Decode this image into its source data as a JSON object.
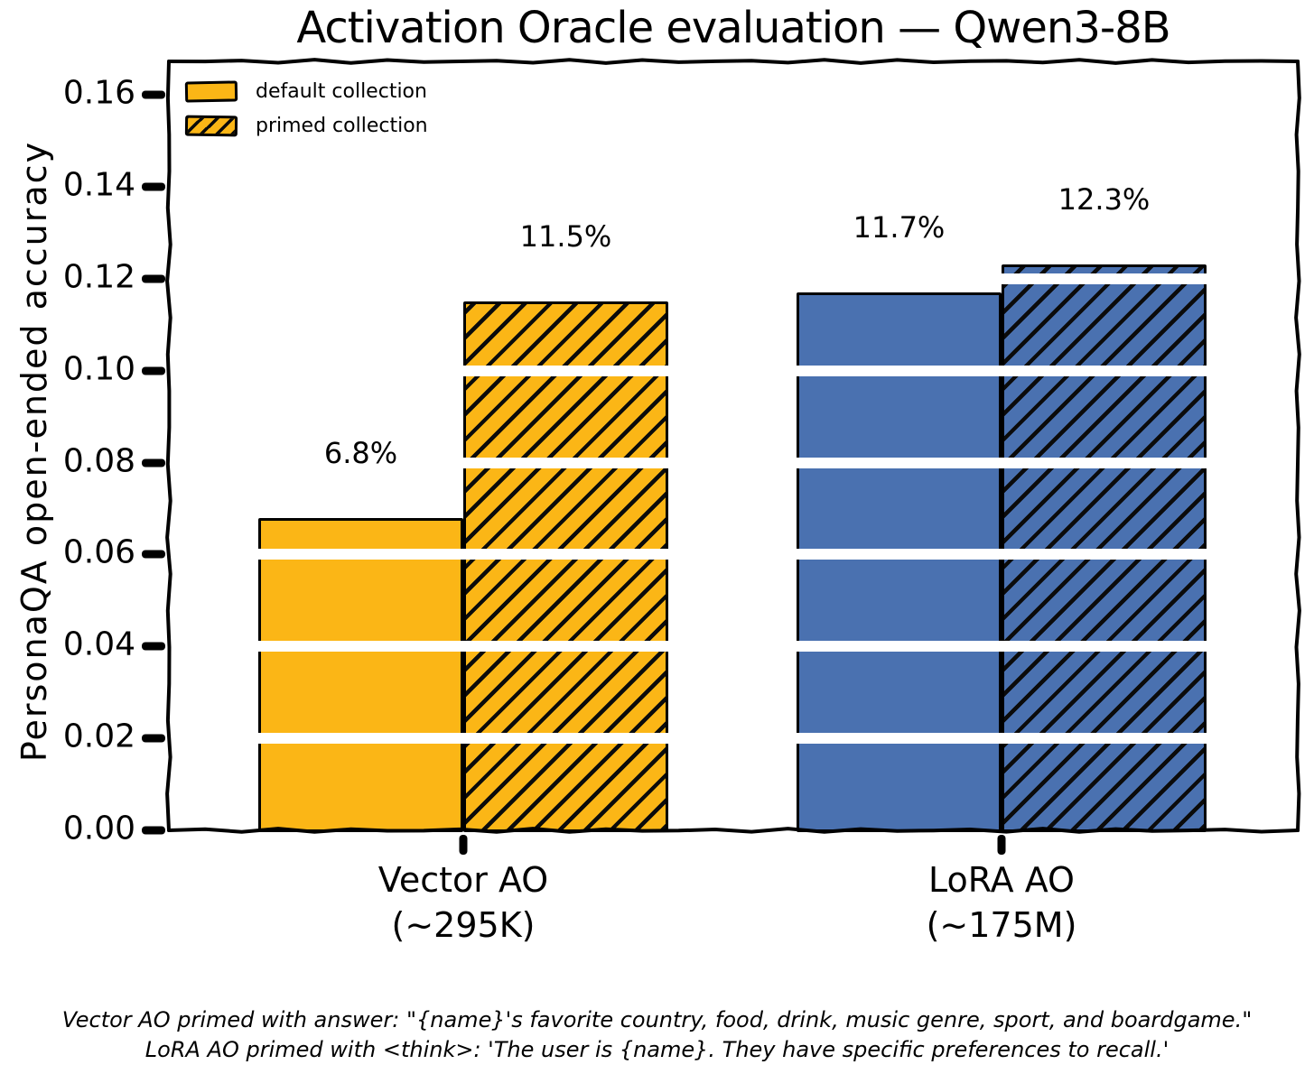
{
  "chart_data": {
    "type": "bar",
    "title": "Activation Oracle evaluation — Qwen3-8B",
    "ylabel": "PersonaQA open-ended accuracy",
    "xlabel": "",
    "ylim": [
      0,
      0.16
    ],
    "ytick_labels": [
      "0.00",
      "0.02",
      "0.04",
      "0.06",
      "0.08",
      "0.10",
      "0.12",
      "0.14",
      "0.16"
    ],
    "grid": true,
    "grid_style": "white horizontal lines drawn over bars",
    "legend_position": "upper left",
    "style": "xkcd hand-drawn",
    "groups": [
      {
        "label_line1": "Vector AO",
        "label_line2": "(~295K)",
        "color": "#FBB616"
      },
      {
        "label_line1": "LoRA AO",
        "label_line2": "(~175M)",
        "color": "#4A71B0"
      }
    ],
    "series": [
      {
        "name": "default collection",
        "hatched": false,
        "values": [
          0.068,
          0.117
        ],
        "value_labels": [
          "6.8%",
          "11.7%"
        ]
      },
      {
        "name": "primed collection",
        "hatched": true,
        "values": [
          0.115,
          0.123
        ],
        "value_labels": [
          "11.5%",
          "12.3%"
        ]
      }
    ],
    "colors": {
      "outline": "#000000",
      "gridline": "#FFFFFF",
      "text": "#000000"
    }
  },
  "caption": {
    "line1": "Vector AO primed with answer: \"{name}'s favorite country, food, drink, music genre, sport, and boardgame.\"",
    "line2": "LoRA AO primed with <think>: 'The user is {name}. They have specific preferences to recall.'"
  }
}
